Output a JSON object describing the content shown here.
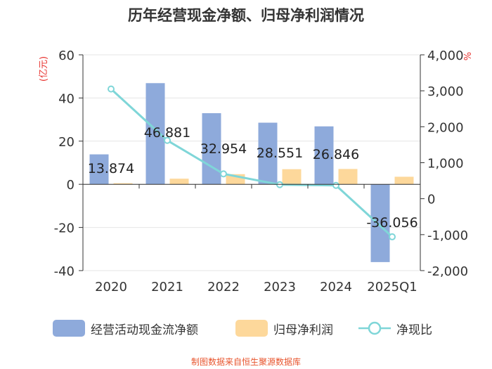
{
  "chart_data": {
    "type": "bar",
    "title": "历年经营现金净额、归母净利润情况",
    "categories": [
      "2020",
      "2021",
      "2022",
      "2023",
      "2024",
      "2025Q1"
    ],
    "left_axis": {
      "label": "(亿元)",
      "ylim": [
        -40,
        60
      ],
      "ticks": [
        "60",
        "40",
        "20",
        "0",
        "-20",
        "-40"
      ],
      "tick_values": [
        60,
        40,
        20,
        0,
        -20,
        -40
      ]
    },
    "right_axis": {
      "label": "%",
      "ylim": [
        -2000,
        4000
      ],
      "ticks": [
        "4,000",
        "3,000",
        "2,000",
        "1,000",
        "0",
        "-1,000",
        "-2,000"
      ],
      "tick_values": [
        4000,
        3000,
        2000,
        1000,
        0,
        -1000,
        -2000
      ]
    },
    "series": [
      {
        "name": "经营活动现金流净额",
        "type": "bar",
        "axis": "left",
        "color": "#8eaadb",
        "values": [
          13.874,
          46.881,
          32.954,
          28.551,
          26.846,
          -36.056
        ],
        "labels": [
          "13.874",
          "46.881",
          "32.954",
          "28.551",
          "26.846",
          "-36.056"
        ]
      },
      {
        "name": "归母净利润",
        "type": "bar",
        "axis": "left",
        "color": "#fdd89b",
        "values": [
          0.5,
          2.6,
          4.7,
          7.0,
          7.1,
          3.5
        ]
      },
      {
        "name": "净现比",
        "type": "line",
        "axis": "right",
        "color": "#7fd6d8",
        "values": [
          3050,
          1620,
          690,
          390,
          370,
          -1060
        ]
      }
    ],
    "grid": true,
    "legend_position": "bottom"
  },
  "footer": {
    "text": "制图数据来自恒生聚源数据库",
    "color": "#e8552e"
  }
}
